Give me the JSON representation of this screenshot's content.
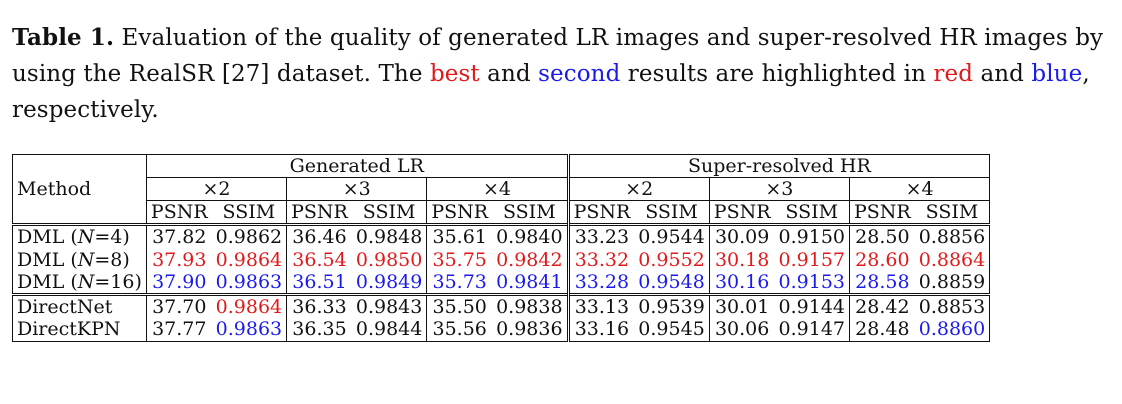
{
  "caption": {
    "label": "Table 1.",
    "text_1": " Evaluation of the quality of generated LR images and super-resolved HR images by using the RealSR [27] dataset. The ",
    "best": "best",
    "text_2": " and ",
    "second": "second",
    "text_3": " results are highlighted in ",
    "red": "red",
    "text_4": " and ",
    "blue": "blue",
    "text_5": ", respectively."
  },
  "colors": {
    "best": "#e0191b",
    "second": "#1a1aeb"
  },
  "table": {
    "method_header": "Method",
    "groups": [
      "Generated LR",
      "Super-resolved HR"
    ],
    "scales": [
      "×2",
      "×3",
      "×4",
      "×2",
      "×3",
      "×4"
    ],
    "metrics": [
      "PSNR",
      "SSIM"
    ],
    "rows": [
      {
        "method": "DML (N=4)",
        "values": [
          "37.82",
          "0.9862",
          "36.46",
          "0.9848",
          "35.61",
          "0.9840",
          "33.23",
          "0.9544",
          "30.09",
          "0.9150",
          "28.50",
          "0.8856"
        ],
        "marks": [
          "",
          "",
          "",
          "",
          "",
          "",
          "",
          "",
          "",
          "",
          "",
          ""
        ]
      },
      {
        "method": "DML (N=8)",
        "values": [
          "37.93",
          "0.9864",
          "36.54",
          "0.9850",
          "35.75",
          "0.9842",
          "33.32",
          "0.9552",
          "30.18",
          "0.9157",
          "28.60",
          "0.8864"
        ],
        "marks": [
          "best",
          "best",
          "best",
          "best",
          "best",
          "best",
          "best",
          "best",
          "best",
          "best",
          "best",
          "best"
        ]
      },
      {
        "method": "DML (N=16)",
        "values": [
          "37.90",
          "0.9863",
          "36.51",
          "0.9849",
          "35.73",
          "0.9841",
          "33.28",
          "0.9548",
          "30.16",
          "0.9153",
          "28.58",
          "0.8859"
        ],
        "marks": [
          "second",
          "second",
          "second",
          "second",
          "second",
          "second",
          "second",
          "second",
          "second",
          "second",
          "second",
          ""
        ]
      },
      {
        "method": "DirectNet",
        "values": [
          "37.70",
          "0.9864",
          "36.33",
          "0.9843",
          "35.50",
          "0.9838",
          "33.13",
          "0.9539",
          "30.01",
          "0.9144",
          "28.42",
          "0.8853"
        ],
        "marks": [
          "",
          "best",
          "",
          "",
          "",
          "",
          "",
          "",
          "",
          "",
          "",
          ""
        ]
      },
      {
        "method": "DirectKPN",
        "values": [
          "37.77",
          "0.9863",
          "36.35",
          "0.9844",
          "35.56",
          "0.9836",
          "33.16",
          "0.9545",
          "30.06",
          "0.9147",
          "28.48",
          "0.8860"
        ],
        "marks": [
          "",
          "second",
          "",
          "",
          "",
          "",
          "",
          "",
          "",
          "",
          "",
          "second"
        ]
      }
    ]
  }
}
